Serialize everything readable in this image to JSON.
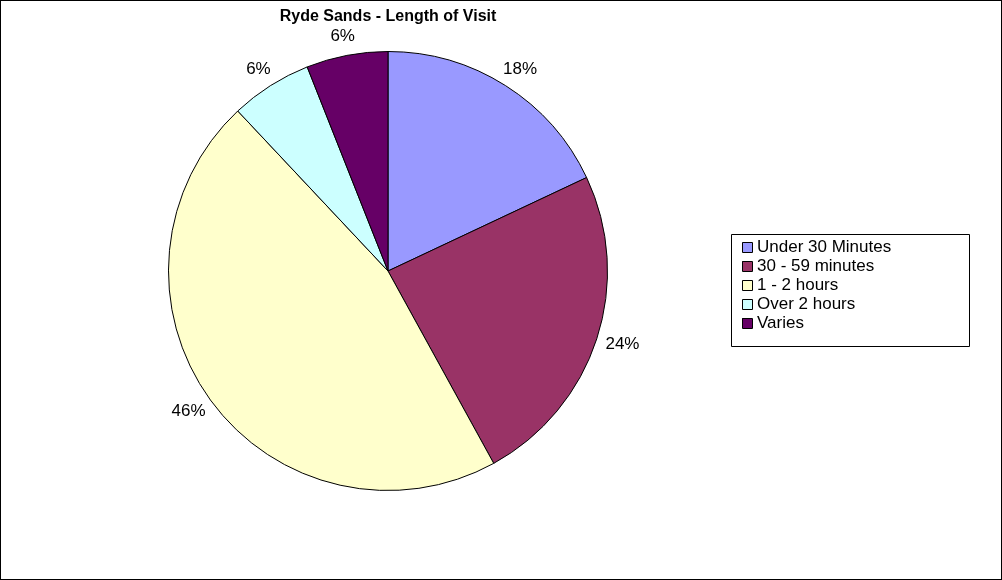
{
  "chart_data": {
    "type": "pie",
    "title": "Ryde Sands - Length of Visit",
    "categories": [
      "Under 30 Minutes",
      "30 - 59 minutes",
      "1 - 2 hours",
      "Over 2 hours",
      "Varies"
    ],
    "values": [
      18,
      24,
      46,
      6,
      6
    ],
    "colors": [
      "#9999ff",
      "#993366",
      "#ffffcc",
      "#ccffff",
      "#660066"
    ],
    "value_labels": [
      "18%",
      "24%",
      "46%",
      "6%",
      "6%"
    ],
    "legend": "right"
  }
}
